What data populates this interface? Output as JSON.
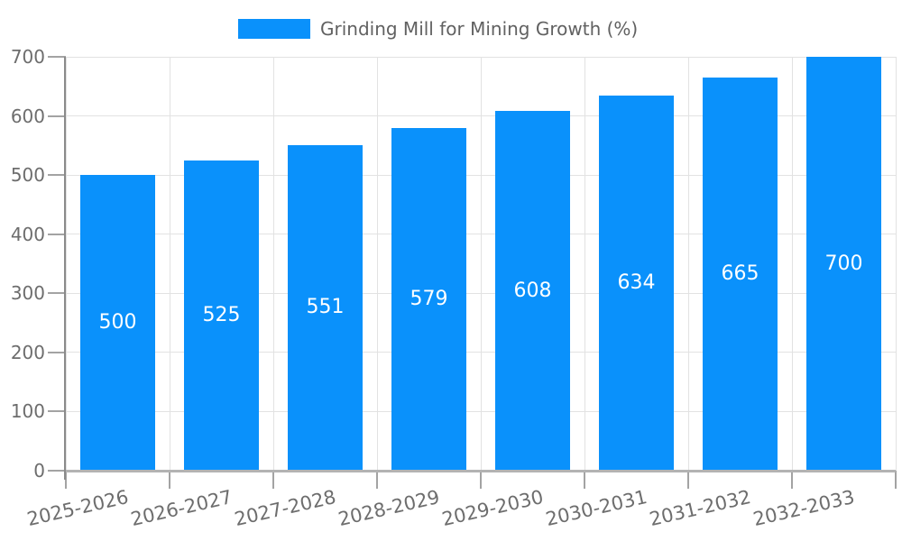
{
  "legend": {
    "items": [
      {
        "label": "Grinding Mill for Mining Growth (%)",
        "swatch_color": "#0a91fb"
      }
    ],
    "position": "top-center"
  },
  "chart_data": {
    "type": "bar",
    "title": "Grinding Mill for Mining Growth (%)",
    "categories": [
      "2025-2026",
      "2026-2027",
      "2027-2028",
      "2028-2029",
      "2029-2030",
      "2030-2031",
      "2031-2032",
      "2032-2033"
    ],
    "series": [
      {
        "name": "Grinding Mill for Mining Growth (%)",
        "values": [
          500,
          525,
          551,
          579,
          608,
          634,
          665,
          700
        ]
      }
    ],
    "xlabel": "",
    "ylabel": "",
    "ylim": [
      0,
      700
    ],
    "yticks": [
      0,
      100,
      200,
      300,
      400,
      500,
      600,
      700
    ],
    "grid": true,
    "xtick_rotation_deg": -13,
    "legend_position": "top-center",
    "data_labels": "inside-center"
  },
  "colors": {
    "bar": "#0a91fb",
    "data_label": "#ffffff",
    "grid": "#e2e2e2",
    "y_axis": "#8a8a8a",
    "x_axis": "#b3b3b3",
    "tick": "#a3a3a3",
    "tick_label": "#6d6d6d",
    "legend_text": "#616161",
    "background": "#ffffff"
  }
}
